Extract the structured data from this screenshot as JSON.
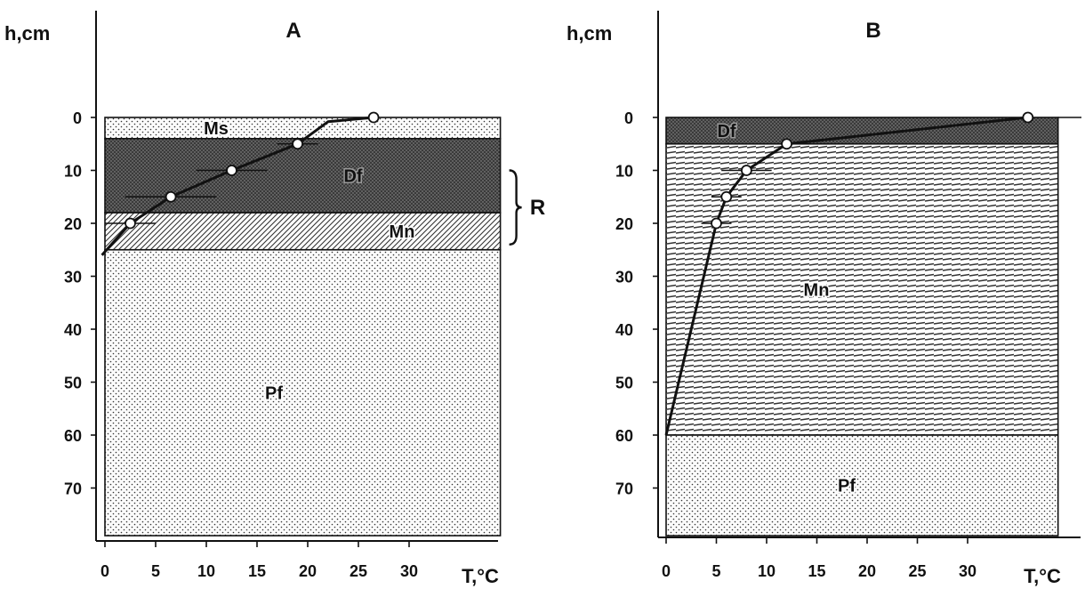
{
  "colors": {
    "ink": "#111111",
    "dark_layer": "#3a3a3a",
    "light_fill": "#f4f4f4",
    "point_fill": "#ffffff"
  },
  "chart_data": [
    {
      "id": "A",
      "type": "line",
      "title": "A",
      "xlabel": "T,°C",
      "ylabel": "h,cm",
      "xlim": [
        0,
        39
      ],
      "ylim": [
        0,
        80
      ],
      "y_inverted": true,
      "x_ticks": [
        "0",
        "5",
        "10",
        "15",
        "20",
        "25",
        "30"
      ],
      "y_ticks": [
        "0",
        "10",
        "20",
        "30",
        "40",
        "50",
        "60",
        "70"
      ],
      "grid": false,
      "layers": [
        {
          "name": "Ms",
          "top": 0,
          "bottom": 4,
          "pattern": "dots"
        },
        {
          "name": "Df",
          "top": 4,
          "bottom": 18,
          "pattern": "dense"
        },
        {
          "name": "Mn",
          "top": 18,
          "bottom": 25,
          "pattern": "diagonal"
        },
        {
          "name": "Pf",
          "top": 25,
          "bottom": 79,
          "pattern": "dots"
        }
      ],
      "layer_box_x_max": 39,
      "annotation": {
        "text": "R",
        "top": 10,
        "bottom": 24
      },
      "series": [
        {
          "points": [
            {
              "x": 26.5,
              "y": 0,
              "err": 0
            },
            {
              "x": 19,
              "y": 5,
              "err": 2
            },
            {
              "x": 12.5,
              "y": 10,
              "err": 3.5
            },
            {
              "x": 6.5,
              "y": 15,
              "err": 4.5
            },
            {
              "x": 2.5,
              "y": 20,
              "err": 2.5
            }
          ],
          "line_extension": [
            [
              26.5,
              0
            ],
            [
              22,
              0.8
            ],
            [
              19,
              5
            ],
            [
              12.5,
              10
            ],
            [
              6.5,
              15
            ],
            [
              2.5,
              20
            ],
            [
              -0.3,
              26
            ]
          ]
        }
      ]
    },
    {
      "id": "B",
      "type": "line",
      "title": "B",
      "xlabel": "T,°C",
      "ylabel": "h,cm",
      "xlim": [
        0,
        39
      ],
      "ylim": [
        0,
        80
      ],
      "y_inverted": true,
      "x_ticks": [
        "0",
        "5",
        "10",
        "15",
        "20",
        "25",
        "30"
      ],
      "y_ticks": [
        "0",
        "10",
        "20",
        "30",
        "40",
        "50",
        "60",
        "70"
      ],
      "grid": false,
      "layers": [
        {
          "name": "Df",
          "top": 0,
          "bottom": 5,
          "pattern": "dense"
        },
        {
          "name": "Mn",
          "top": 5,
          "bottom": 60,
          "pattern": "horizontal"
        },
        {
          "name": "Pf",
          "top": 60,
          "bottom": 79,
          "pattern": "dots"
        }
      ],
      "layer_box_x_max": 39,
      "series": [
        {
          "points": [
            {
              "x": 36,
              "y": 0,
              "err": 0
            },
            {
              "x": 12,
              "y": 5,
              "err": 0
            },
            {
              "x": 8,
              "y": 10,
              "err": 2.5
            },
            {
              "x": 6,
              "y": 15,
              "err": 1.5
            },
            {
              "x": 5,
              "y": 20,
              "err": 1.5
            }
          ],
          "line_extension": [
            [
              36,
              0
            ],
            [
              12,
              5
            ],
            [
              8,
              10
            ],
            [
              6,
              15
            ],
            [
              5,
              20
            ],
            [
              0,
              60
            ]
          ]
        }
      ]
    }
  ]
}
